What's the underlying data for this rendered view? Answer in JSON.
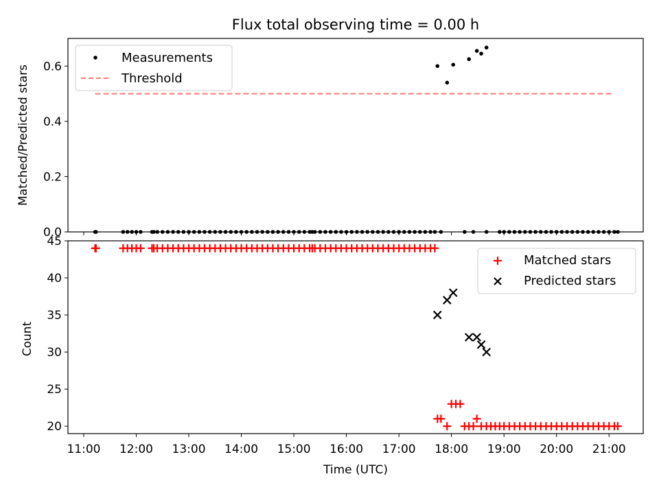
{
  "chart_data": [
    {
      "type": "scatter",
      "title": "Flux total observing time = 0.00 h",
      "xlabel": "",
      "ylabel": "Matched/Predicted stars",
      "ylim": [
        0.0,
        0.7
      ],
      "xlim_hours": [
        10.7,
        21.65
      ],
      "y_ticks": [
        0.0,
        0.2,
        0.4,
        0.6
      ],
      "y_tick_labels": [
        "0.0",
        "0.2",
        "0.4",
        "0.6"
      ],
      "legend": {
        "location": "top-left",
        "entries": [
          "Measurements",
          "Threshold"
        ]
      },
      "colors": {
        "measurements": "#000000",
        "threshold": "#ff7777"
      },
      "threshold": {
        "name": "Threshold",
        "value": 0.5,
        "x_start": "11:13",
        "x_end": "21:05"
      },
      "series": [
        {
          "name": "Measurements",
          "points": [
            [
              "11:13",
              0.0
            ],
            [
              "11:14",
              0.0
            ],
            [
              "11:45",
              0.0
            ],
            [
              "11:50",
              0.0
            ],
            [
              "11:55",
              0.0
            ],
            [
              "12:00",
              0.0
            ],
            [
              "12:05",
              0.0
            ],
            [
              "12:18",
              0.0
            ],
            [
              "12:20",
              0.0
            ],
            [
              "12:24",
              0.0
            ],
            [
              "12:30",
              0.0
            ],
            [
              "12:36",
              0.0
            ],
            [
              "12:42",
              0.0
            ],
            [
              "12:48",
              0.0
            ],
            [
              "12:54",
              0.0
            ],
            [
              "13:00",
              0.0
            ],
            [
              "13:06",
              0.0
            ],
            [
              "13:12",
              0.0
            ],
            [
              "13:18",
              0.0
            ],
            [
              "13:24",
              0.0
            ],
            [
              "13:30",
              0.0
            ],
            [
              "13:36",
              0.0
            ],
            [
              "13:42",
              0.0
            ],
            [
              "13:48",
              0.0
            ],
            [
              "13:54",
              0.0
            ],
            [
              "14:00",
              0.0
            ],
            [
              "14:06",
              0.0
            ],
            [
              "14:12",
              0.0
            ],
            [
              "14:18",
              0.0
            ],
            [
              "14:24",
              0.0
            ],
            [
              "14:30",
              0.0
            ],
            [
              "14:36",
              0.0
            ],
            [
              "14:42",
              0.0
            ],
            [
              "14:48",
              0.0
            ],
            [
              "14:54",
              0.0
            ],
            [
              "15:00",
              0.0
            ],
            [
              "15:06",
              0.0
            ],
            [
              "15:12",
              0.0
            ],
            [
              "15:18",
              0.0
            ],
            [
              "15:21",
              0.0
            ],
            [
              "15:24",
              0.0
            ],
            [
              "15:30",
              0.0
            ],
            [
              "15:36",
              0.0
            ],
            [
              "15:42",
              0.0
            ],
            [
              "15:48",
              0.0
            ],
            [
              "15:54",
              0.0
            ],
            [
              "16:00",
              0.0
            ],
            [
              "16:06",
              0.0
            ],
            [
              "16:12",
              0.0
            ],
            [
              "16:18",
              0.0
            ],
            [
              "16:24",
              0.0
            ],
            [
              "16:30",
              0.0
            ],
            [
              "16:36",
              0.0
            ],
            [
              "16:42",
              0.0
            ],
            [
              "16:48",
              0.0
            ],
            [
              "16:54",
              0.0
            ],
            [
              "17:00",
              0.0
            ],
            [
              "17:06",
              0.0
            ],
            [
              "17:12",
              0.0
            ],
            [
              "17:18",
              0.0
            ],
            [
              "17:24",
              0.0
            ],
            [
              "17:30",
              0.0
            ],
            [
              "17:36",
              0.0
            ],
            [
              "17:41",
              0.0
            ],
            [
              "17:44",
              0.6
            ],
            [
              "17:48",
              0.0
            ],
            [
              "17:55",
              0.54
            ],
            [
              "18:02",
              0.605
            ],
            [
              "18:15",
              0.0
            ],
            [
              "18:20",
              0.625
            ],
            [
              "18:25",
              0.0
            ],
            [
              "18:29",
              0.655
            ],
            [
              "18:34",
              0.645
            ],
            [
              "18:40",
              0.0
            ],
            [
              "18:40",
              0.667
            ],
            [
              "18:55",
              0.0
            ],
            [
              "19:00",
              0.0
            ],
            [
              "19:06",
              0.0
            ],
            [
              "19:12",
              0.0
            ],
            [
              "19:18",
              0.0
            ],
            [
              "19:24",
              0.0
            ],
            [
              "19:30",
              0.0
            ],
            [
              "19:36",
              0.0
            ],
            [
              "19:42",
              0.0
            ],
            [
              "19:48",
              0.0
            ],
            [
              "19:54",
              0.0
            ],
            [
              "20:00",
              0.0
            ],
            [
              "20:06",
              0.0
            ],
            [
              "20:12",
              0.0
            ],
            [
              "20:18",
              0.0
            ],
            [
              "20:24",
              0.0
            ],
            [
              "20:30",
              0.0
            ],
            [
              "20:36",
              0.0
            ],
            [
              "20:42",
              0.0
            ],
            [
              "20:48",
              0.0
            ],
            [
              "20:54",
              0.0
            ],
            [
              "21:00",
              0.0
            ],
            [
              "21:06",
              0.0
            ],
            [
              "21:10",
              0.0
            ]
          ]
        }
      ]
    },
    {
      "type": "scatter",
      "title": "",
      "xlabel": "Time (UTC)",
      "ylabel": "Count",
      "ylim": [
        19.0,
        45.0
      ],
      "xlim_hours": [
        10.7,
        21.65
      ],
      "x_ticks": [
        "11:00",
        "12:00",
        "13:00",
        "14:00",
        "15:00",
        "16:00",
        "17:00",
        "18:00",
        "19:00",
        "20:00",
        "21:00"
      ],
      "y_ticks": [
        20,
        25,
        30,
        35,
        40,
        45
      ],
      "y_tick_labels": [
        "20",
        "25",
        "30",
        "35",
        "40",
        "45"
      ],
      "legend": {
        "location": "top-right",
        "entries": [
          "Matched stars",
          "Predicted stars"
        ]
      },
      "colors": {
        "matched": "#ff0000",
        "predicted": "#000000"
      },
      "series": [
        {
          "name": "Matched stars",
          "points": [
            [
              "11:13",
              44
            ],
            [
              "11:14",
              44
            ],
            [
              "11:45",
              44
            ],
            [
              "11:50",
              44
            ],
            [
              "11:55",
              44
            ],
            [
              "12:00",
              44
            ],
            [
              "12:05",
              44
            ],
            [
              "12:18",
              44
            ],
            [
              "12:20",
              44
            ],
            [
              "12:24",
              44
            ],
            [
              "12:30",
              44
            ],
            [
              "12:36",
              44
            ],
            [
              "12:42",
              44
            ],
            [
              "12:48",
              44
            ],
            [
              "12:54",
              44
            ],
            [
              "13:00",
              44
            ],
            [
              "13:06",
              44
            ],
            [
              "13:12",
              44
            ],
            [
              "13:18",
              44
            ],
            [
              "13:24",
              44
            ],
            [
              "13:30",
              44
            ],
            [
              "13:36",
              44
            ],
            [
              "13:42",
              44
            ],
            [
              "13:48",
              44
            ],
            [
              "13:54",
              44
            ],
            [
              "14:00",
              44
            ],
            [
              "14:06",
              44
            ],
            [
              "14:12",
              44
            ],
            [
              "14:18",
              44
            ],
            [
              "14:24",
              44
            ],
            [
              "14:30",
              44
            ],
            [
              "14:36",
              44
            ],
            [
              "14:42",
              44
            ],
            [
              "14:48",
              44
            ],
            [
              "14:54",
              44
            ],
            [
              "15:00",
              44
            ],
            [
              "15:06",
              44
            ],
            [
              "15:12",
              44
            ],
            [
              "15:18",
              44
            ],
            [
              "15:21",
              44
            ],
            [
              "15:24",
              44
            ],
            [
              "15:30",
              44
            ],
            [
              "15:36",
              44
            ],
            [
              "15:42",
              44
            ],
            [
              "15:48",
              44
            ],
            [
              "15:54",
              44
            ],
            [
              "16:00",
              44
            ],
            [
              "16:06",
              44
            ],
            [
              "16:12",
              44
            ],
            [
              "16:18",
              44
            ],
            [
              "16:24",
              44
            ],
            [
              "16:30",
              44
            ],
            [
              "16:36",
              44
            ],
            [
              "16:42",
              44
            ],
            [
              "16:48",
              44
            ],
            [
              "16:54",
              44
            ],
            [
              "17:00",
              44
            ],
            [
              "17:06",
              44
            ],
            [
              "17:12",
              44
            ],
            [
              "17:18",
              44
            ],
            [
              "17:24",
              44
            ],
            [
              "17:30",
              44
            ],
            [
              "17:36",
              44
            ],
            [
              "17:41",
              44
            ],
            [
              "17:44",
              21
            ],
            [
              "17:48",
              21
            ],
            [
              "17:55",
              20
            ],
            [
              "18:00",
              23
            ],
            [
              "18:05",
              23
            ],
            [
              "18:10",
              23
            ],
            [
              "18:15",
              20
            ],
            [
              "18:20",
              20
            ],
            [
              "18:25",
              20
            ],
            [
              "18:29",
              21
            ],
            [
              "18:34",
              20
            ],
            [
              "18:40",
              20
            ],
            [
              "18:45",
              20
            ],
            [
              "18:50",
              20
            ],
            [
              "18:55",
              20
            ],
            [
              "19:00",
              20
            ],
            [
              "19:06",
              20
            ],
            [
              "19:12",
              20
            ],
            [
              "19:18",
              20
            ],
            [
              "19:24",
              20
            ],
            [
              "19:30",
              20
            ],
            [
              "19:36",
              20
            ],
            [
              "19:42",
              20
            ],
            [
              "19:48",
              20
            ],
            [
              "19:54",
              20
            ],
            [
              "20:00",
              20
            ],
            [
              "20:06",
              20
            ],
            [
              "20:12",
              20
            ],
            [
              "20:18",
              20
            ],
            [
              "20:24",
              20
            ],
            [
              "20:30",
              20
            ],
            [
              "20:36",
              20
            ],
            [
              "20:42",
              20
            ],
            [
              "20:48",
              20
            ],
            [
              "20:54",
              20
            ],
            [
              "21:00",
              20
            ],
            [
              "21:06",
              20
            ],
            [
              "21:10",
              20
            ]
          ]
        },
        {
          "name": "Predicted stars",
          "points": [
            [
              "17:44",
              35
            ],
            [
              "17:55",
              37
            ],
            [
              "18:02",
              38
            ],
            [
              "18:20",
              32
            ],
            [
              "18:29",
              32
            ],
            [
              "18:34",
              31
            ],
            [
              "18:40",
              30
            ]
          ]
        }
      ]
    }
  ]
}
